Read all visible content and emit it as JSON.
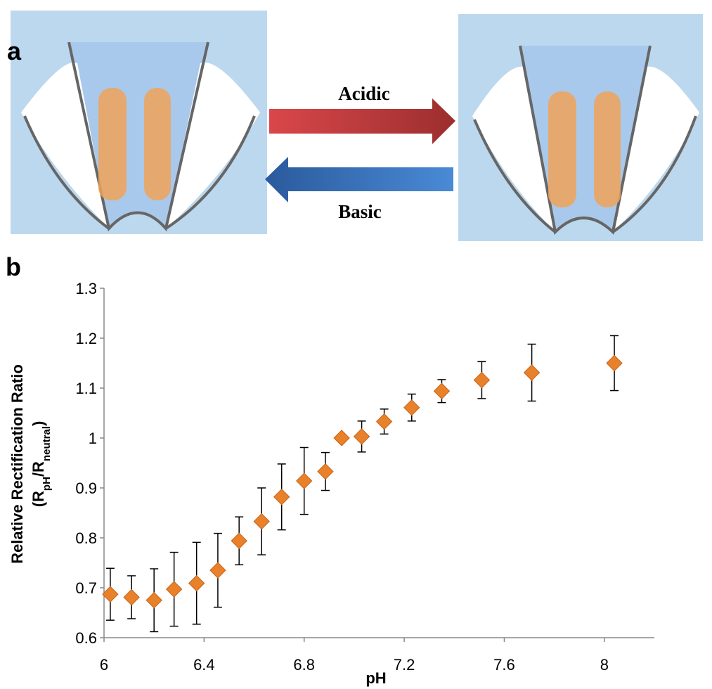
{
  "panel_a": {
    "label": "a",
    "arrow_top": "Acidic",
    "arrow_bottom": "Basic"
  },
  "chart_data": {
    "type": "scatter",
    "panel_label": "b",
    "xlabel": "pH",
    "ylabel": "Relative Rectification Ratio",
    "ylabel_parts": [
      "(R",
      "pH",
      "/R",
      "neutral",
      ")"
    ],
    "xlim": [
      6,
      8.2
    ],
    "ylim": [
      0.6,
      1.3
    ],
    "xticks": [
      6,
      6.4,
      6.8,
      7.2,
      7.6,
      8
    ],
    "yticks": [
      0.6,
      0.7,
      0.8,
      0.9,
      1,
      1.1,
      1.2,
      1.3
    ],
    "series": [
      {
        "color": "#e9812a",
        "x": [
          6.025,
          6.11,
          6.2,
          6.28,
          6.37,
          6.455,
          6.54,
          6.63,
          6.71,
          6.8,
          6.885,
          6.95,
          7.03,
          7.12,
          7.23,
          7.35,
          7.51,
          7.71,
          8.04
        ],
        "values": [
          0.687,
          0.681,
          0.675,
          0.697,
          0.709,
          0.735,
          0.794,
          0.833,
          0.882,
          0.914,
          0.933,
          1.0,
          1.003,
          1.033,
          1.061,
          1.094,
          1.116,
          1.131,
          1.15
        ],
        "errors": [
          0.052,
          0.043,
          0.063,
          0.074,
          0.082,
          0.074,
          0.048,
          0.067,
          0.066,
          0.067,
          0.038,
          0,
          0.031,
          0.025,
          0.027,
          0.023,
          0.037,
          0.057,
          0.055
        ]
      }
    ]
  }
}
